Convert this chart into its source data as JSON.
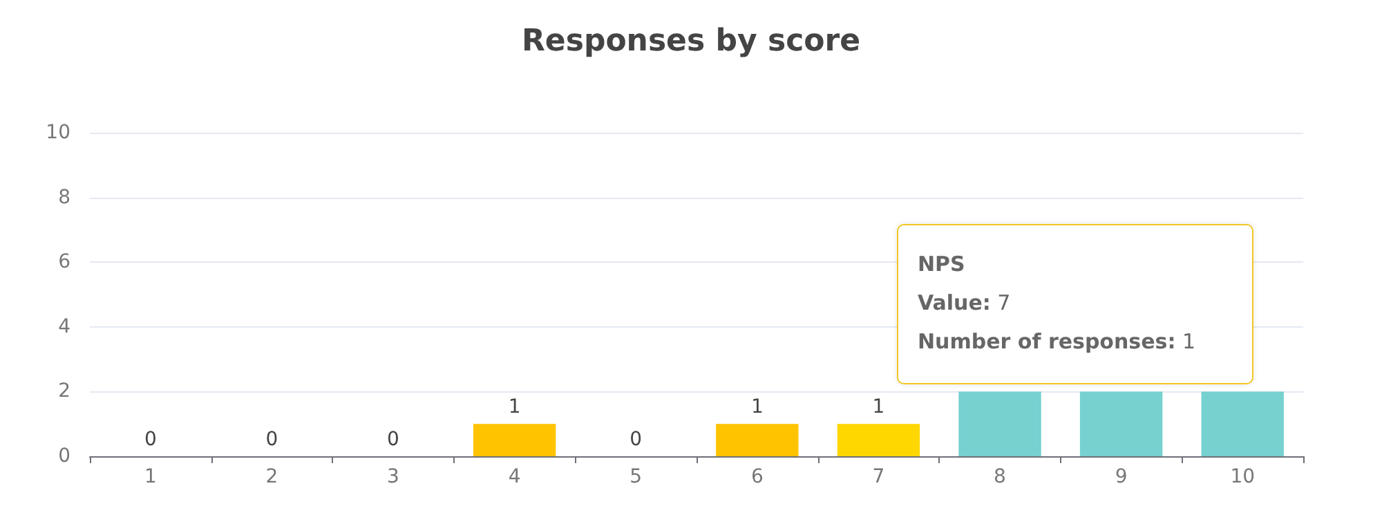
{
  "chart_data": {
    "type": "bar",
    "title": "Responses by score",
    "categories": [
      "1",
      "2",
      "3",
      "4",
      "5",
      "6",
      "7",
      "8",
      "9",
      "10"
    ],
    "values": [
      0,
      0,
      0,
      1,
      0,
      1,
      1,
      2,
      2,
      2
    ],
    "colors": [
      "#ffc300",
      "#ffc300",
      "#ffc300",
      "#ffc300",
      "#ffc300",
      "#ffc300",
      "#ffd700",
      "#76d1cf",
      "#76d1cf",
      "#76d1cf"
    ],
    "value_labels": [
      "0",
      "0",
      "0",
      "1",
      "0",
      "1",
      "1",
      null,
      null,
      null
    ],
    "ylim": [
      0,
      10
    ],
    "yticks": [
      0,
      2,
      4,
      6,
      8,
      10
    ],
    "grid": "y",
    "annotations": [
      "NPS",
      "Value: 7",
      "Number of responses: 1"
    ]
  }
}
